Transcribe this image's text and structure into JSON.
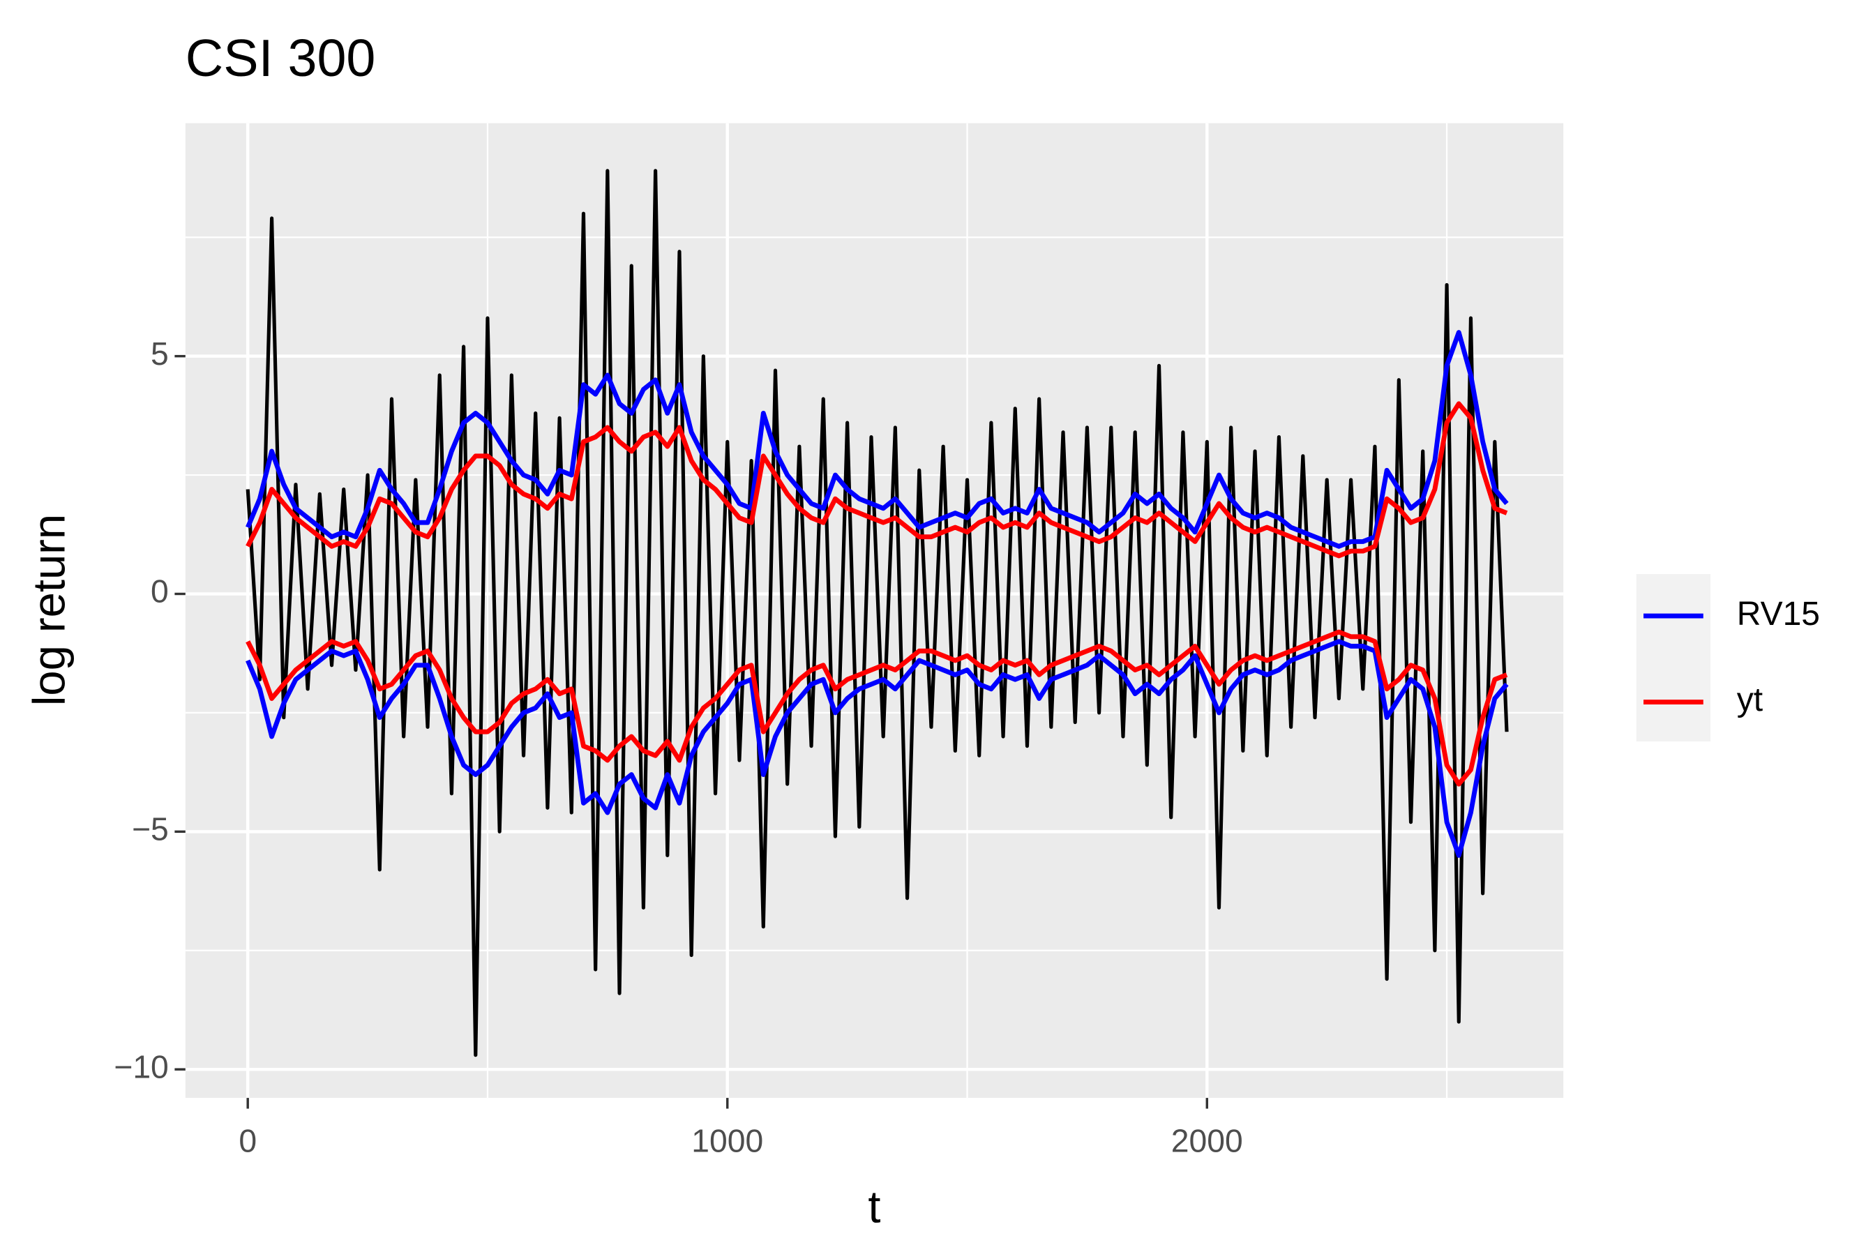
{
  "chart_data": {
    "type": "line",
    "title": "CSI 300",
    "x_label": "t",
    "y_label": "log return",
    "xlim": [
      -130,
      2743
    ],
    "ylim": [
      -10.6,
      9.9
    ],
    "xticks": [
      0,
      1000,
      2000
    ],
    "yticks": [
      {
        "value": -10,
        "label": "−10"
      },
      {
        "value": -5,
        "label": "−5"
      },
      0,
      5
    ],
    "xminorticks": [
      500,
      1500,
      2500
    ],
    "yminorticks": [
      -7.5,
      -2.5,
      2.5,
      7.5
    ],
    "grid": true,
    "legend": "right",
    "x": [
      0,
      25,
      50,
      75,
      100,
      125,
      150,
      175,
      200,
      225,
      250,
      275,
      300,
      325,
      350,
      375,
      400,
      425,
      450,
      475,
      500,
      525,
      550,
      575,
      600,
      625,
      650,
      675,
      700,
      725,
      750,
      775,
      800,
      825,
      850,
      875,
      900,
      925,
      950,
      975,
      1000,
      1025,
      1050,
      1075,
      1100,
      1125,
      1150,
      1175,
      1200,
      1225,
      1250,
      1275,
      1300,
      1325,
      1350,
      1375,
      1400,
      1425,
      1450,
      1475,
      1500,
      1525,
      1550,
      1575,
      1600,
      1625,
      1650,
      1675,
      1700,
      1725,
      1750,
      1775,
      1800,
      1825,
      1850,
      1875,
      1900,
      1925,
      1950,
      1975,
      2000,
      2025,
      2050,
      2075,
      2100,
      2125,
      2150,
      2175,
      2200,
      2225,
      2250,
      2275,
      2300,
      2325,
      2350,
      2375,
      2400,
      2425,
      2450,
      2475,
      2500,
      2525,
      2550,
      2575,
      2600,
      2625
    ],
    "series": [
      {
        "color": "#000000",
        "values": [
          2.2,
          -1.8,
          7.9,
          -2.6,
          2.3,
          -2.0,
          2.1,
          -1.5,
          2.2,
          -1.6,
          2.5,
          -5.8,
          4.1,
          -3.0,
          2.4,
          -2.8,
          4.6,
          -4.2,
          5.2,
          -9.7,
          5.8,
          -5.0,
          4.6,
          -3.4,
          3.8,
          -4.5,
          3.7,
          -4.6,
          8.0,
          -7.9,
          8.9,
          -8.4,
          6.9,
          -6.6,
          8.9,
          -5.5,
          7.2,
          -7.6,
          5.0,
          -4.2,
          3.2,
          -3.5,
          2.8,
          -7.0,
          4.7,
          -4.0,
          3.1,
          -3.2,
          4.1,
          -5.1,
          3.6,
          -4.9,
          3.3,
          -3.0,
          3.5,
          -6.4,
          2.6,
          -2.8,
          3.1,
          -3.3,
          2.4,
          -3.4,
          3.6,
          -3.0,
          3.9,
          -3.2,
          4.1,
          -2.8,
          3.4,
          -2.7,
          3.5,
          -2.5,
          3.5,
          -3.0,
          3.4,
          -3.6,
          4.8,
          -4.7,
          3.4,
          -3.0,
          3.2,
          -6.6,
          3.5,
          -3.3,
          3.0,
          -3.4,
          3.3,
          -2.8,
          2.9,
          -2.6,
          2.4,
          -2.2,
          2.4,
          -2.0,
          3.1,
          -8.1,
          4.5,
          -4.8,
          3.0,
          -7.5,
          6.5,
          -9.0,
          5.8,
          -6.3,
          3.2,
          -2.9
        ]
      },
      {
        "name": "RV15",
        "color": "#0000ff",
        "symmetric": true,
        "values": [
          1.4,
          2.0,
          3.0,
          2.3,
          1.8,
          1.6,
          1.4,
          1.2,
          1.3,
          1.2,
          1.8,
          2.6,
          2.2,
          1.9,
          1.5,
          1.5,
          2.2,
          3.0,
          3.6,
          3.8,
          3.6,
          3.2,
          2.8,
          2.5,
          2.4,
          2.1,
          2.6,
          2.5,
          4.4,
          4.2,
          4.6,
          4.0,
          3.8,
          4.3,
          4.5,
          3.8,
          4.4,
          3.4,
          2.9,
          2.6,
          2.3,
          1.9,
          1.8,
          3.8,
          3.0,
          2.5,
          2.2,
          1.9,
          1.8,
          2.5,
          2.2,
          2.0,
          1.9,
          1.8,
          2.0,
          1.7,
          1.4,
          1.5,
          1.6,
          1.7,
          1.6,
          1.9,
          2.0,
          1.7,
          1.8,
          1.7,
          2.2,
          1.8,
          1.7,
          1.6,
          1.5,
          1.3,
          1.5,
          1.7,
          2.1,
          1.9,
          2.1,
          1.8,
          1.6,
          1.3,
          1.9,
          2.5,
          2.0,
          1.7,
          1.6,
          1.7,
          1.6,
          1.4,
          1.3,
          1.2,
          1.1,
          1.0,
          1.1,
          1.1,
          1.2,
          2.6,
          2.2,
          1.8,
          2.0,
          2.8,
          4.8,
          5.5,
          4.6,
          3.2,
          2.2,
          1.9
        ]
      },
      {
        "name": "yt",
        "color": "#ff0000",
        "symmetric": true,
        "values": [
          1.0,
          1.5,
          2.2,
          1.9,
          1.6,
          1.4,
          1.2,
          1.0,
          1.1,
          1.0,
          1.4,
          2.0,
          1.9,
          1.6,
          1.3,
          1.2,
          1.6,
          2.2,
          2.6,
          2.9,
          2.9,
          2.7,
          2.3,
          2.1,
          2.0,
          1.8,
          2.1,
          2.0,
          3.2,
          3.3,
          3.5,
          3.2,
          3.0,
          3.3,
          3.4,
          3.1,
          3.5,
          2.8,
          2.4,
          2.2,
          1.9,
          1.6,
          1.5,
          2.9,
          2.5,
          2.1,
          1.8,
          1.6,
          1.5,
          2.0,
          1.8,
          1.7,
          1.6,
          1.5,
          1.6,
          1.4,
          1.2,
          1.2,
          1.3,
          1.4,
          1.3,
          1.5,
          1.6,
          1.4,
          1.5,
          1.4,
          1.7,
          1.5,
          1.4,
          1.3,
          1.2,
          1.1,
          1.2,
          1.4,
          1.6,
          1.5,
          1.7,
          1.5,
          1.3,
          1.1,
          1.5,
          1.9,
          1.6,
          1.4,
          1.3,
          1.4,
          1.3,
          1.2,
          1.1,
          1.0,
          0.9,
          0.8,
          0.9,
          0.9,
          1.0,
          2.0,
          1.8,
          1.5,
          1.6,
          2.2,
          3.6,
          4.0,
          3.7,
          2.6,
          1.8,
          1.7
        ]
      }
    ]
  }
}
